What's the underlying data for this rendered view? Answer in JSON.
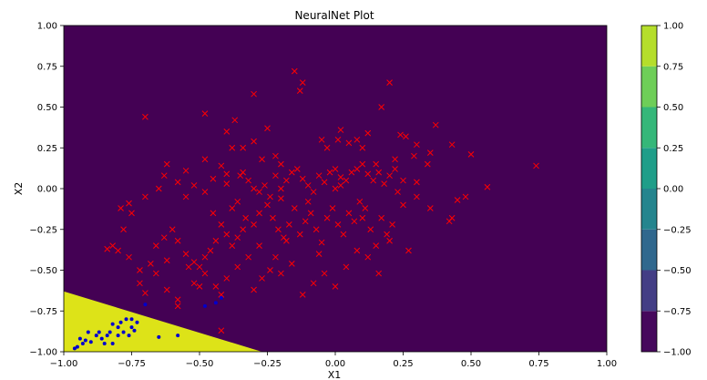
{
  "chart_data": {
    "type": "scatter",
    "title": "NeuralNet Plot",
    "xlabel": "X1",
    "ylabel": "X2",
    "xlim": [
      -1.0,
      1.0
    ],
    "ylim": [
      -1.0,
      1.0
    ],
    "x_ticks": [
      "−1.00",
      "−0.75",
      "−0.50",
      "−0.25",
      "0.00",
      "0.25",
      "0.50",
      "0.75",
      "1.00"
    ],
    "y_ticks": [
      "−1.00",
      "−0.75",
      "−0.50",
      "−0.25",
      "0.00",
      "0.25",
      "0.50",
      "0.75",
      "1.00"
    ],
    "grid": false,
    "decision_regions": {
      "boundary_line": [
        [
          -1.0,
          -0.63
        ],
        [
          -0.27,
          -1.0
        ]
      ],
      "region_below_value": 1.0,
      "region_above_value": 0.0,
      "colors": {
        "low": "#440154",
        "high": "#dde318"
      }
    },
    "colorbar": {
      "levels": [
        -1.0,
        -0.75,
        -0.5,
        -0.25,
        0.0,
        0.25,
        0.5,
        0.75,
        1.0
      ],
      "tick_labels": [
        "−1.00",
        "−0.75",
        "−0.50",
        "−0.25",
        "0.00",
        "0.25",
        "0.50",
        "0.75",
        "1.00"
      ],
      "colors": [
        "#46085c",
        "#433e85",
        "#30688e",
        "#25858e",
        "#1f9e89",
        "#35b779",
        "#6ece58",
        "#b5de2b"
      ]
    },
    "series": [
      {
        "marker": "x",
        "color": "#ff0000",
        "points": [
          [
            -0.15,
            0.72
          ],
          [
            -0.12,
            0.65
          ],
          [
            -0.13,
            0.6
          ],
          [
            0.2,
            0.65
          ],
          [
            -0.3,
            0.58
          ],
          [
            0.17,
            0.5
          ],
          [
            -0.48,
            0.46
          ],
          [
            -0.7,
            0.44
          ],
          [
            -0.37,
            0.42
          ],
          [
            0.02,
            0.36
          ],
          [
            0.37,
            0.39
          ],
          [
            0.12,
            0.34
          ],
          [
            0.3,
            0.27
          ],
          [
            0.24,
            0.33
          ],
          [
            0.26,
            0.32
          ],
          [
            -0.25,
            0.37
          ],
          [
            -0.4,
            0.35
          ],
          [
            0.08,
            0.3
          ],
          [
            0.1,
            0.25
          ],
          [
            0.05,
            0.28
          ],
          [
            -0.05,
            0.3
          ],
          [
            -0.03,
            0.25
          ],
          [
            0.01,
            0.3
          ],
          [
            0.35,
            0.22
          ],
          [
            0.43,
            0.27
          ],
          [
            0.29,
            0.2
          ],
          [
            0.22,
            0.18
          ],
          [
            0.34,
            0.15
          ],
          [
            0.5,
            0.21
          ],
          [
            0.74,
            0.14
          ],
          [
            0.56,
            0.01
          ],
          [
            0.45,
            -0.07
          ],
          [
            0.48,
            -0.05
          ],
          [
            0.43,
            -0.18
          ],
          [
            0.42,
            -0.2
          ],
          [
            0.3,
            0.04
          ],
          [
            -0.62,
            0.15
          ],
          [
            -0.63,
            0.08
          ],
          [
            -0.48,
            0.18
          ],
          [
            -0.38,
            0.25
          ],
          [
            -0.3,
            0.29
          ],
          [
            -0.34,
            0.25
          ],
          [
            -0.22,
            0.2
          ],
          [
            -0.2,
            0.15
          ],
          [
            -0.27,
            0.18
          ],
          [
            -0.42,
            0.14
          ],
          [
            -0.55,
            0.11
          ],
          [
            -0.58,
            0.04
          ],
          [
            -0.65,
            0.0
          ],
          [
            -0.7,
            -0.05
          ],
          [
            -0.76,
            -0.09
          ],
          [
            -0.79,
            -0.12
          ],
          [
            -0.55,
            -0.05
          ],
          [
            -0.48,
            -0.02
          ],
          [
            -0.45,
            0.06
          ],
          [
            -0.4,
            0.03
          ],
          [
            -0.35,
            0.08
          ],
          [
            -0.34,
            0.1
          ],
          [
            -0.32,
            0.05
          ],
          [
            -0.3,
            0.0
          ],
          [
            -0.28,
            -0.02
          ],
          [
            -0.26,
            0.02
          ],
          [
            -0.24,
            -0.05
          ],
          [
            -0.22,
            0.08
          ],
          [
            -0.2,
            0.0
          ],
          [
            -0.18,
            0.05
          ],
          [
            -0.16,
            0.1
          ],
          [
            -0.14,
            0.12
          ],
          [
            -0.12,
            0.06
          ],
          [
            -0.1,
            0.02
          ],
          [
            -0.08,
            -0.02
          ],
          [
            -0.06,
            0.08
          ],
          [
            -0.04,
            0.04
          ],
          [
            -0.02,
            0.1
          ],
          [
            0.0,
            0.12
          ],
          [
            0.02,
            0.07
          ],
          [
            0.04,
            0.05
          ],
          [
            0.06,
            0.1
          ],
          [
            0.08,
            0.12
          ],
          [
            0.1,
            0.15
          ],
          [
            0.12,
            0.09
          ],
          [
            0.14,
            0.05
          ],
          [
            0.16,
            0.1
          ],
          [
            0.18,
            0.03
          ],
          [
            0.2,
            0.08
          ],
          [
            0.22,
            0.12
          ],
          [
            -0.36,
            -0.08
          ],
          [
            -0.38,
            -0.12
          ],
          [
            -0.33,
            -0.18
          ],
          [
            -0.3,
            -0.22
          ],
          [
            -0.28,
            -0.15
          ],
          [
            -0.25,
            -0.1
          ],
          [
            -0.23,
            -0.18
          ],
          [
            -0.21,
            -0.25
          ],
          [
            -0.19,
            -0.3
          ],
          [
            -0.17,
            -0.22
          ],
          [
            -0.15,
            -0.12
          ],
          [
            -0.13,
            -0.28
          ],
          [
            -0.11,
            -0.2
          ],
          [
            -0.09,
            -0.15
          ],
          [
            -0.07,
            -0.25
          ],
          [
            -0.05,
            -0.33
          ],
          [
            -0.03,
            -0.18
          ],
          [
            -0.01,
            -0.12
          ],
          [
            0.01,
            -0.22
          ],
          [
            0.03,
            -0.28
          ],
          [
            0.05,
            -0.15
          ],
          [
            0.07,
            -0.2
          ],
          [
            0.09,
            -0.08
          ],
          [
            0.11,
            -0.12
          ],
          [
            0.13,
            -0.25
          ],
          [
            0.15,
            -0.35
          ],
          [
            0.17,
            -0.18
          ],
          [
            0.19,
            -0.28
          ],
          [
            0.21,
            -0.22
          ],
          [
            0.23,
            -0.02
          ],
          [
            0.25,
            -0.1
          ],
          [
            -0.45,
            -0.15
          ],
          [
            -0.42,
            -0.22
          ],
          [
            -0.4,
            -0.28
          ],
          [
            -0.38,
            -0.35
          ],
          [
            -0.36,
            -0.3
          ],
          [
            -0.34,
            -0.25
          ],
          [
            -0.44,
            -0.32
          ],
          [
            -0.46,
            -0.38
          ],
          [
            -0.48,
            -0.42
          ],
          [
            -0.5,
            -0.48
          ],
          [
            -0.52,
            -0.45
          ],
          [
            -0.55,
            -0.4
          ],
          [
            -0.58,
            -0.32
          ],
          [
            -0.6,
            -0.25
          ],
          [
            -0.63,
            -0.3
          ],
          [
            -0.66,
            -0.35
          ],
          [
            -0.68,
            -0.46
          ],
          [
            -0.72,
            -0.5
          ],
          [
            -0.76,
            -0.42
          ],
          [
            -0.8,
            -0.38
          ],
          [
            -0.82,
            -0.35
          ],
          [
            -0.84,
            -0.37
          ],
          [
            -0.78,
            -0.25
          ],
          [
            -0.75,
            -0.15
          ],
          [
            -0.72,
            -0.58
          ],
          [
            -0.7,
            -0.64
          ],
          [
            -0.66,
            -0.52
          ],
          [
            -0.62,
            -0.62
          ],
          [
            -0.58,
            -0.68
          ],
          [
            -0.52,
            -0.58
          ],
          [
            -0.48,
            -0.52
          ],
          [
            -0.44,
            -0.6
          ],
          [
            -0.42,
            -0.65
          ],
          [
            -0.4,
            -0.55
          ],
          [
            -0.36,
            -0.48
          ],
          [
            -0.32,
            -0.42
          ],
          [
            -0.28,
            -0.35
          ],
          [
            -0.24,
            -0.5
          ],
          [
            -0.2,
            -0.52
          ],
          [
            -0.16,
            -0.46
          ],
          [
            -0.12,
            -0.65
          ],
          [
            -0.08,
            -0.58
          ],
          [
            -0.04,
            -0.52
          ],
          [
            0.0,
            -0.6
          ],
          [
            0.04,
            -0.48
          ],
          [
            0.08,
            -0.38
          ],
          [
            0.12,
            -0.42
          ],
          [
            0.16,
            -0.52
          ],
          [
            0.2,
            -0.32
          ],
          [
            0.27,
            -0.38
          ],
          [
            -0.3,
            -0.62
          ],
          [
            -0.27,
            -0.55
          ],
          [
            -0.22,
            -0.42
          ],
          [
            -0.18,
            -0.32
          ],
          [
            -0.42,
            -0.87
          ],
          [
            -0.58,
            -0.72
          ],
          [
            -0.5,
            -0.6
          ],
          [
            -0.54,
            -0.48
          ],
          [
            -0.62,
            -0.44
          ],
          [
            0.1,
            -0.18
          ],
          [
            0.3,
            -0.05
          ],
          [
            0.35,
            -0.12
          ],
          [
            -0.06,
            -0.4
          ],
          [
            0.0,
            0.0
          ],
          [
            0.02,
            0.02
          ],
          [
            -0.1,
            -0.08
          ],
          [
            0.15,
            0.15
          ],
          [
            0.25,
            0.05
          ],
          [
            -0.4,
            0.09
          ],
          [
            -0.52,
            0.02
          ],
          [
            -0.2,
            -0.06
          ]
        ]
      },
      {
        "marker": "o",
        "color": "#0000cc",
        "points": [
          [
            -0.95,
            -0.97
          ],
          [
            -0.93,
            -0.95
          ],
          [
            -0.92,
            -0.93
          ],
          [
            -0.9,
            -0.94
          ],
          [
            -0.88,
            -0.9
          ],
          [
            -0.86,
            -0.92
          ],
          [
            -0.84,
            -0.9
          ],
          [
            -0.85,
            -0.95
          ],
          [
            -0.82,
            -0.95
          ],
          [
            -0.8,
            -0.9
          ],
          [
            -0.78,
            -0.88
          ],
          [
            -0.8,
            -0.85
          ],
          [
            -0.82,
            -0.83
          ],
          [
            -0.79,
            -0.82
          ],
          [
            -0.77,
            -0.8
          ],
          [
            -0.75,
            -0.85
          ],
          [
            -0.75,
            -0.8
          ],
          [
            -0.73,
            -0.82
          ],
          [
            -0.91,
            -0.88
          ],
          [
            -0.94,
            -0.92
          ],
          [
            -0.96,
            -0.98
          ],
          [
            -0.87,
            -0.88
          ],
          [
            -0.83,
            -0.88
          ],
          [
            -0.76,
            -0.9
          ],
          [
            -0.74,
            -0.87
          ],
          [
            -0.65,
            -0.91
          ],
          [
            -0.58,
            -0.9
          ],
          [
            -0.7,
            -0.71
          ],
          [
            -0.48,
            -0.72
          ],
          [
            -0.42,
            -0.67
          ],
          [
            -0.44,
            -0.7
          ]
        ]
      }
    ]
  }
}
